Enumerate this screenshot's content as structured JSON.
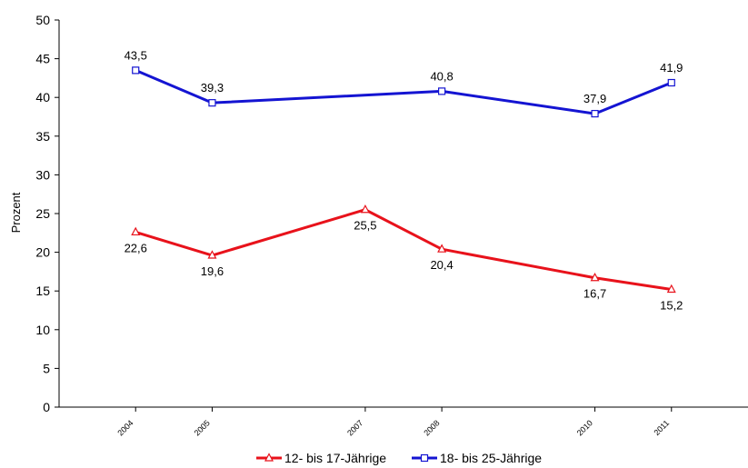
{
  "chart_data": {
    "type": "line",
    "ylabel": "Prozent",
    "xlabel": "",
    "title": "",
    "ylim": [
      0,
      50
    ],
    "yticks": [
      0,
      5,
      10,
      15,
      20,
      25,
      30,
      35,
      40,
      45,
      50
    ],
    "x": [
      2004,
      2005,
      2007,
      2008,
      2010,
      2011
    ],
    "xlim": [
      2003,
      2012
    ],
    "x_tick_labels": [
      "2004",
      "2005",
      "2007",
      "2008",
      "2010",
      "2011"
    ],
    "grid": false,
    "legend": "bottom-center",
    "series": [
      {
        "name": "12- bis 17-Jährige",
        "values": [
          22.6,
          19.6,
          25.5,
          20.4,
          16.7,
          15.2
        ],
        "labels": [
          "22,6",
          "19,6",
          "25,5",
          "20,4",
          "16,7",
          "15,2"
        ],
        "color": "#e8121b",
        "marker": "triangle"
      },
      {
        "name": "18- bis 25-Jährige",
        "values": [
          43.5,
          39.3,
          40.8,
          37.9,
          41.9
        ],
        "x": [
          2004,
          2005,
          2008,
          2010,
          2011
        ],
        "labels": [
          "43,5",
          "39,3",
          "40,8",
          "37,9",
          "41,9"
        ],
        "color": "#1414d2",
        "marker": "square"
      }
    ]
  }
}
